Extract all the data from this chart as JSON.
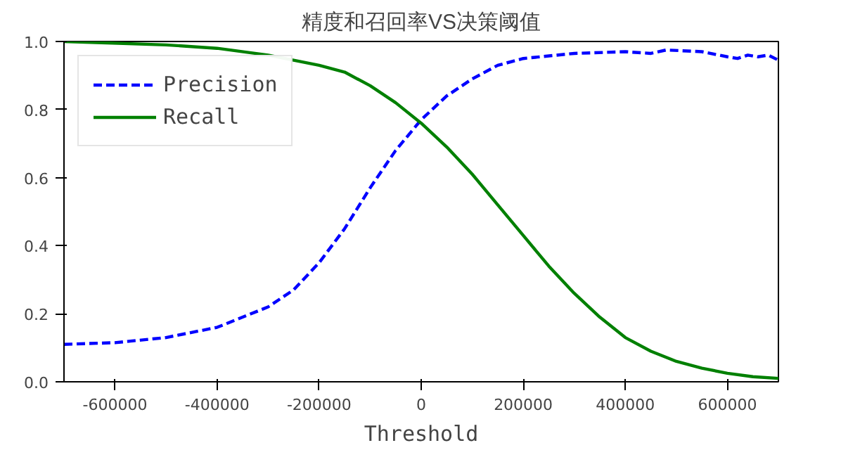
{
  "chart_data": {
    "type": "line",
    "title": "精度和召回率VS决策阈值",
    "xlabel": "Threshold",
    "xlim": [
      -700000,
      700000
    ],
    "xticks": [
      -600000,
      -400000,
      -200000,
      0,
      200000,
      400000,
      600000
    ],
    "ylim": [
      0,
      1
    ],
    "yticks": [
      {
        "value": 0,
        "label": "0.0"
      },
      {
        "value": 0.2,
        "label": "0.2"
      },
      {
        "value": 0.4,
        "label": "0.4"
      },
      {
        "value": 0.6,
        "label": "0.6"
      },
      {
        "value": 0.8,
        "label": "0.8"
      },
      {
        "value": 1,
        "label": "1.0"
      }
    ],
    "grid": false,
    "legend": "top left",
    "marker": "none",
    "series": [
      {
        "name": "Precision",
        "color": "#0000ff",
        "line_style": "dashed",
        "x": [
          -700000,
          -600000,
          -500000,
          -400000,
          -300000,
          -250000,
          -200000,
          -150000,
          -100000,
          -50000,
          0,
          50000,
          100000,
          150000,
          200000,
          300000,
          400000,
          450000,
          480000,
          550000,
          600000,
          620000,
          640000,
          660000,
          680000,
          700000
        ],
        "values": [
          0.11,
          0.115,
          0.13,
          0.16,
          0.22,
          0.27,
          0.35,
          0.45,
          0.57,
          0.68,
          0.77,
          0.84,
          0.89,
          0.93,
          0.95,
          0.965,
          0.97,
          0.965,
          0.975,
          0.97,
          0.955,
          0.95,
          0.96,
          0.955,
          0.96,
          0.945
        ]
      },
      {
        "name": "Recall",
        "color": "#008000",
        "line_style": "solid",
        "x": [
          -700000,
          -500000,
          -400000,
          -300000,
          -200000,
          -150000,
          -100000,
          -50000,
          0,
          50000,
          100000,
          150000,
          200000,
          250000,
          300000,
          350000,
          400000,
          450000,
          500000,
          550000,
          600000,
          650000,
          700000
        ],
        "values": [
          1.0,
          0.99,
          0.98,
          0.96,
          0.93,
          0.91,
          0.87,
          0.82,
          0.76,
          0.69,
          0.61,
          0.52,
          0.43,
          0.34,
          0.26,
          0.19,
          0.13,
          0.09,
          0.06,
          0.04,
          0.025,
          0.015,
          0.01
        ]
      }
    ]
  }
}
